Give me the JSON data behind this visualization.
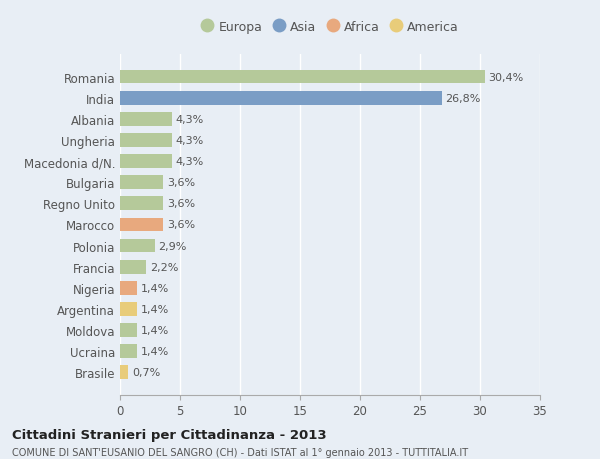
{
  "countries": [
    "Romania",
    "India",
    "Albania",
    "Ungheria",
    "Macedonia d/N.",
    "Bulgaria",
    "Regno Unito",
    "Marocco",
    "Polonia",
    "Francia",
    "Nigeria",
    "Argentina",
    "Moldova",
    "Ucraina",
    "Brasile"
  ],
  "values": [
    30.4,
    26.8,
    4.3,
    4.3,
    4.3,
    3.6,
    3.6,
    3.6,
    2.9,
    2.2,
    1.4,
    1.4,
    1.4,
    1.4,
    0.7
  ],
  "labels": [
    "30,4%",
    "26,8%",
    "4,3%",
    "4,3%",
    "4,3%",
    "3,6%",
    "3,6%",
    "3,6%",
    "2,9%",
    "2,2%",
    "1,4%",
    "1,4%",
    "1,4%",
    "1,4%",
    "0,7%"
  ],
  "colors": [
    "#b5c99a",
    "#7a9dc5",
    "#b5c99a",
    "#b5c99a",
    "#b5c99a",
    "#b5c99a",
    "#b5c99a",
    "#e8a97e",
    "#b5c99a",
    "#b5c99a",
    "#e8a97e",
    "#e8cc7a",
    "#b5c99a",
    "#b5c99a",
    "#e8cc7a"
  ],
  "legend_labels": [
    "Europa",
    "Asia",
    "Africa",
    "America"
  ],
  "legend_colors": [
    "#b5c99a",
    "#7a9dc5",
    "#e8a97e",
    "#e8cc7a"
  ],
  "xlim": [
    0,
    35
  ],
  "xticks": [
    0,
    5,
    10,
    15,
    20,
    25,
    30,
    35
  ],
  "title": "Cittadini Stranieri per Cittadinanza - 2013",
  "subtitle": "COMUNE DI SANT'EUSANIO DEL SANGRO (CH) - Dati ISTAT al 1° gennaio 2013 - TUTTITALIA.IT",
  "bg_color": "#e8eef5",
  "plot_bg_color": "#e8eef5",
  "grid_color": "#ffffff",
  "bar_height": 0.65
}
